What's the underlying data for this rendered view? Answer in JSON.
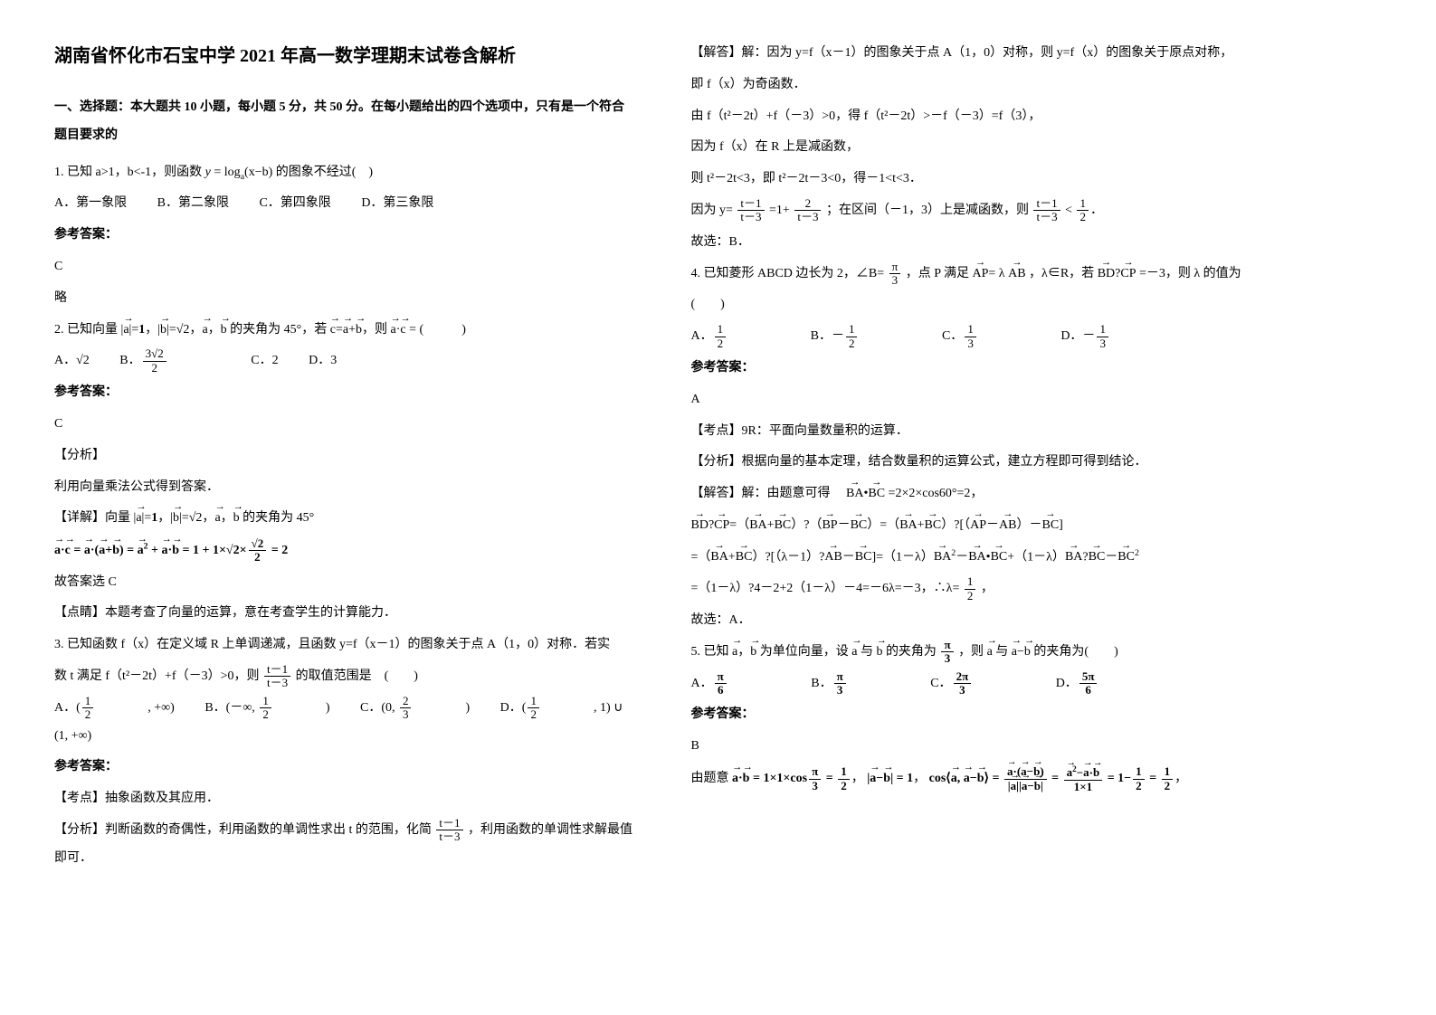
{
  "title": "湖南省怀化市石宝中学 2021 年高一数学理期末试卷含解析",
  "section1": "一、选择题：本大题共 10 小题，每小题 5 分，共 50 分。在每小题给出的四个选项中，只有是一个符合题目要求的",
  "q1": {
    "stem": "1. 已知 a>1，b<-1，则函数 y = log<sub>a</sub>(x−b) 的图象不经过(　)",
    "A": "A．第一象限",
    "B": "B．第二象限",
    "C": "C．第四象限",
    "D": "D．第三象限",
    "ans_label": "参考答案：",
    "ans": "C",
    "sol": "略"
  },
  "q2": {
    "stem_pre": "2. 已知向量",
    "stem_mid": "的夹角为 45°，若",
    "stem_end": "  (　　　)",
    "A": "A．√2",
    "B": "B．",
    "C": "C．2",
    "D": "D．3",
    "ans_label": "参考答案：",
    "ans": "C",
    "analysis_label": "【分析】",
    "analysis": "利用向量乘法公式得到答案．",
    "detail_label": "【详解】向量",
    "detail_mid": "的夹角为 45°",
    "conclusion": "故答案选 C",
    "point_label": "【点睛】本题考查了向量的运算，意在考查学生的计算能力．"
  },
  "q3": {
    "stem1": "3. 已知函数 f（x）在定义域 R 上单调递减，且函数 y=f（x－1）的图象关于点 A（1，0）对称．若实",
    "stem2": "数 t 满足 f（t²－2t）+f（－3）>0，则",
    "stem3": "的取值范围是　(　　)",
    "A": "A．(　 , +∞)",
    "B": "B．(－∞, 　)",
    "C": "C．(0, 　)",
    "D": "D．(　 , 1) ∪ (1, +∞)",
    "ans_label": "参考答案：",
    "point": "【考点】抽象函数及其应用．",
    "analysis": "【分析】判断函数的奇偶性，利用函数的单调性求出 t 的范围，化简",
    "analysis2": "，利用函数的单调性求解最值即可．"
  },
  "right": {
    "sol_label": "【解答】解：因为 y=f（x－1）的图象关于点 A（1，0）对称，则 y=f（x）的图象关于原点对称，",
    "l2": "即 f（x）为奇函数．",
    "l3": "由 f（t²－2t）+f（－3）>0，得 f（t²－2t）>－f（－3）=f（3），",
    "l4": "因为 f（x）在 R 上是减函数，",
    "l5": "则 t²－2t<3，即 t²－2t－3<0，得－1<t<3．",
    "l6a": "因为 y=",
    "l6b": "=1+",
    "l6c": "；在区间（－1，3）上是减函数，则",
    "l7": "故选：B．"
  },
  "q4": {
    "stem1": "4. 已知菱形 ABCD 边长为 2，∠B=",
    "stem2": "，点 P 满足",
    "stem3": "，λ∈R，若",
    "stem4": "=－3，则 λ 的值为",
    "stem5": "(　　)",
    "ans_label": "参考答案：",
    "ans": "A",
    "point": "【考点】9R：平面向量数量积的运算．",
    "analysis": "【分析】根据向量的基本定理，结合数量积的运算公式，建立方程即可得到结论．",
    "sol1": "【解答】解：由题意可得　",
    "sol1b": "=2×2×cos60°=2，",
    "last1": "=（1－λ）?4－2+2（1－λ）－4=－6λ=－3，∴λ=",
    "last2": "，",
    "last3": "故选：A．"
  },
  "q5": {
    "stem1": "5. 已知",
    "stem2": "为单位向量，设",
    "stem3": "与",
    "stem4": "的夹角为",
    "stem5": "，则",
    "stem6": "与",
    "stem7": "的夹角为(　　)",
    "ans_label": "参考答案：",
    "ans": "B",
    "sol1": "由题意"
  }
}
